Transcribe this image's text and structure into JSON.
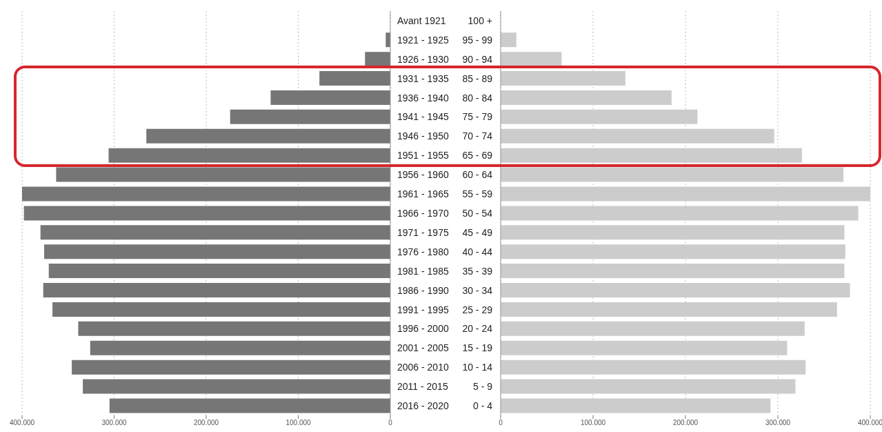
{
  "chart_data": [
    {
      "type": "bar",
      "orientation": "horizontal",
      "categories": [
        "Avant 1921",
        "1921 - 1925",
        "1926 - 1930",
        "1931 - 1935",
        "1936 - 1940",
        "1941 - 1945",
        "1946 - 1950",
        "1951 - 1955",
        "1956 - 1960",
        "1961 - 1965",
        "1966 - 1970",
        "1971 - 1975",
        "1976 - 1980",
        "1981 - 1985",
        "1986 - 1990",
        "1991 - 1995",
        "1996 - 2000",
        "2001 - 2005",
        "2006 - 2010",
        "2011 - 2015",
        "2016 - 2020"
      ],
      "series": [
        {
          "color": "#767676",
          "values": [
            null,
            5000,
            27500,
            77000,
            130000,
            174000,
            265000,
            306000,
            363000,
            400000,
            398000,
            380000,
            376000,
            371000,
            377000,
            367000,
            339000,
            326000,
            346000,
            334000,
            305000
          ]
        }
      ],
      "xlim": [
        400000,
        0
      ],
      "xticks": [
        {
          "value": 400000,
          "label": "400.000"
        },
        {
          "value": 300000,
          "label": "300.000"
        },
        {
          "value": 200000,
          "label": "200.000"
        },
        {
          "value": 100000,
          "label": "100.000"
        },
        0
      ],
      "grid": "x"
    },
    {
      "type": "bar",
      "orientation": "horizontal",
      "categories": [
        "100 +",
        "95 - 99",
        "90 - 94",
        "85 - 89",
        "80 - 84",
        "75 - 79",
        "70 - 74",
        "65 - 69",
        "60 - 64",
        "55 - 59",
        "50 - 54",
        "45 - 49",
        "40 - 44",
        "35 - 39",
        "30 - 34",
        "25 - 29",
        "20 - 24",
        "15 - 19",
        "10 - 14",
        "5 - 9",
        "0 - 4"
      ],
      "series": [
        {
          "color": "#cccccc",
          "values": [
            null,
            17000,
            66000,
            135000,
            185000,
            213000,
            296000,
            326000,
            371000,
            400000,
            387000,
            372000,
            373000,
            372000,
            378000,
            364000,
            329000,
            310000,
            330000,
            319000,
            292000
          ]
        }
      ],
      "xlim": [
        0,
        400000
      ],
      "xticks": [
        0,
        {
          "value": 100000,
          "label": "100.000"
        },
        {
          "value": 200000,
          "label": "200.000"
        },
        {
          "value": 300000,
          "label": "300.000"
        },
        {
          "value": 400000,
          "label": "400.000"
        }
      ],
      "grid": "x"
    }
  ]
}
